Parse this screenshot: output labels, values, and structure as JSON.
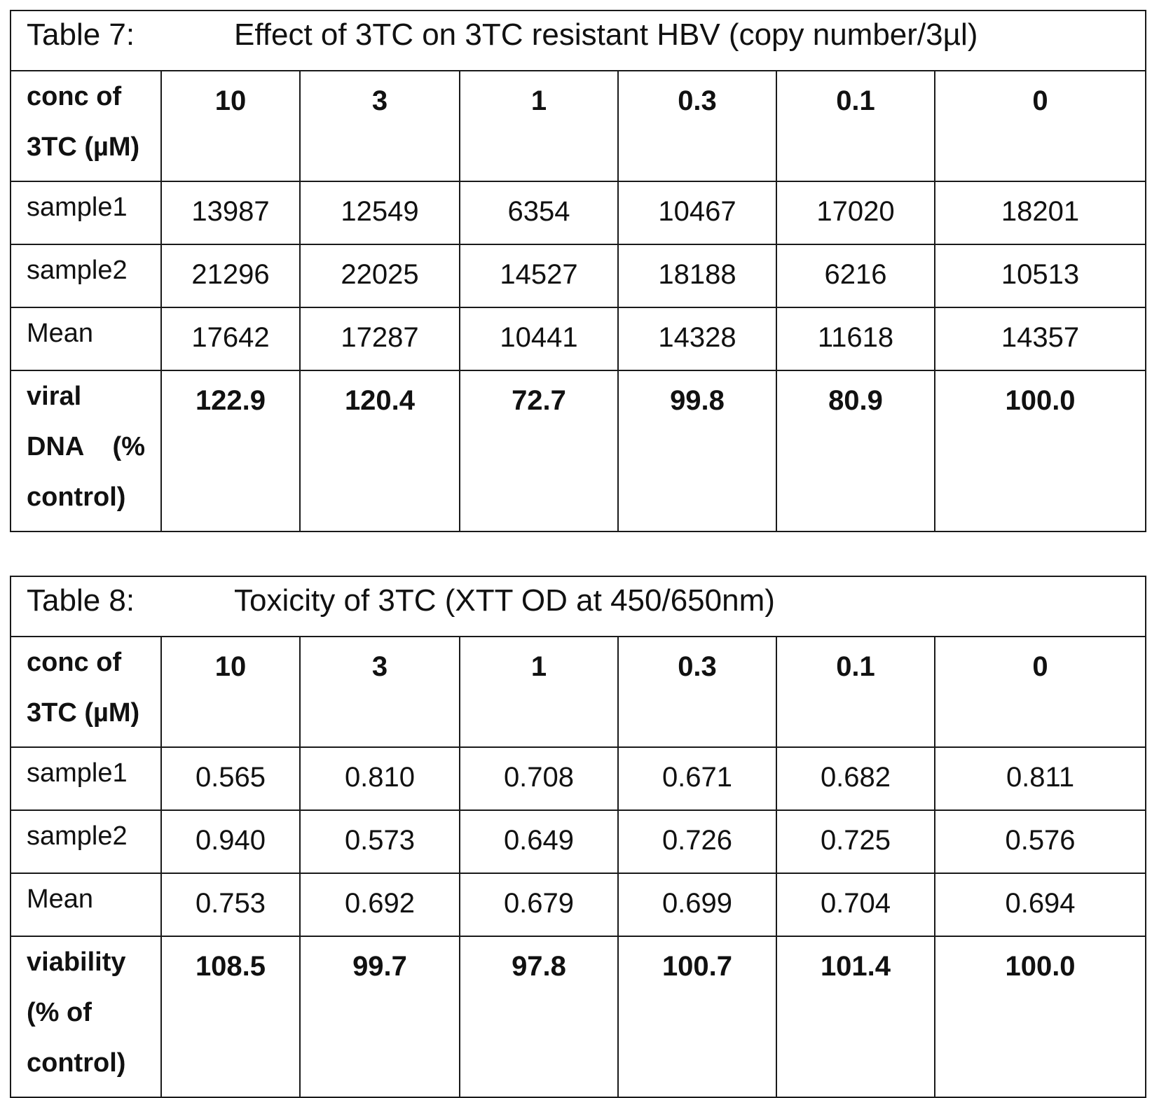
{
  "table7": {
    "caption_label": "Table 7:",
    "caption_title": "Effect of 3TC on 3TC resistant HBV (copy number/3µl)",
    "header": {
      "label_line1": "conc of",
      "label_line2": "3TC (µM)",
      "concentrations": [
        "10",
        "3",
        "1",
        "0.3",
        "0.1",
        "0"
      ]
    },
    "rows": [
      {
        "label": "sample1",
        "values": [
          "13987",
          "12549",
          "6354",
          "10467",
          "17020",
          "18201"
        ]
      },
      {
        "label": "sample2",
        "values": [
          "21296",
          "22025",
          "14527",
          "18188",
          "6216",
          "10513"
        ]
      },
      {
        "label": "Mean",
        "values": [
          "17642",
          "17287",
          "10441",
          "14328",
          "11618",
          "14357"
        ]
      }
    ],
    "summary": {
      "label_line1": "viral",
      "label_line2": "DNA (%",
      "label_line3": "control)",
      "values": [
        "122.9",
        "120.4",
        "72.7",
        "99.8",
        "80.9",
        "100.0"
      ]
    }
  },
  "table8": {
    "caption_label": "Table 8:",
    "caption_title": "Toxicity of 3TC (XTT OD at 450/650nm)",
    "header": {
      "label_line1": "conc of",
      "label_line2": "3TC (µM)",
      "concentrations": [
        "10",
        "3",
        "1",
        "0.3",
        "0.1",
        "0"
      ]
    },
    "rows": [
      {
        "label": "sample1",
        "values": [
          "0.565",
          "0.810",
          "0.708",
          "0.671",
          "0.682",
          "0.811"
        ]
      },
      {
        "label": "sample2",
        "values": [
          "0.940",
          "0.573",
          "0.649",
          "0.726",
          "0.725",
          "0.576"
        ]
      },
      {
        "label": "Mean",
        "values": [
          "0.753",
          "0.692",
          "0.679",
          "0.699",
          "0.704",
          "0.694"
        ]
      }
    ],
    "summary": {
      "label_line1": "viability",
      "label_line2": "(% of",
      "label_line3": "control)",
      "values": [
        "108.5",
        "99.7",
        "97.8",
        "100.7",
        "101.4",
        "100.0"
      ]
    }
  }
}
